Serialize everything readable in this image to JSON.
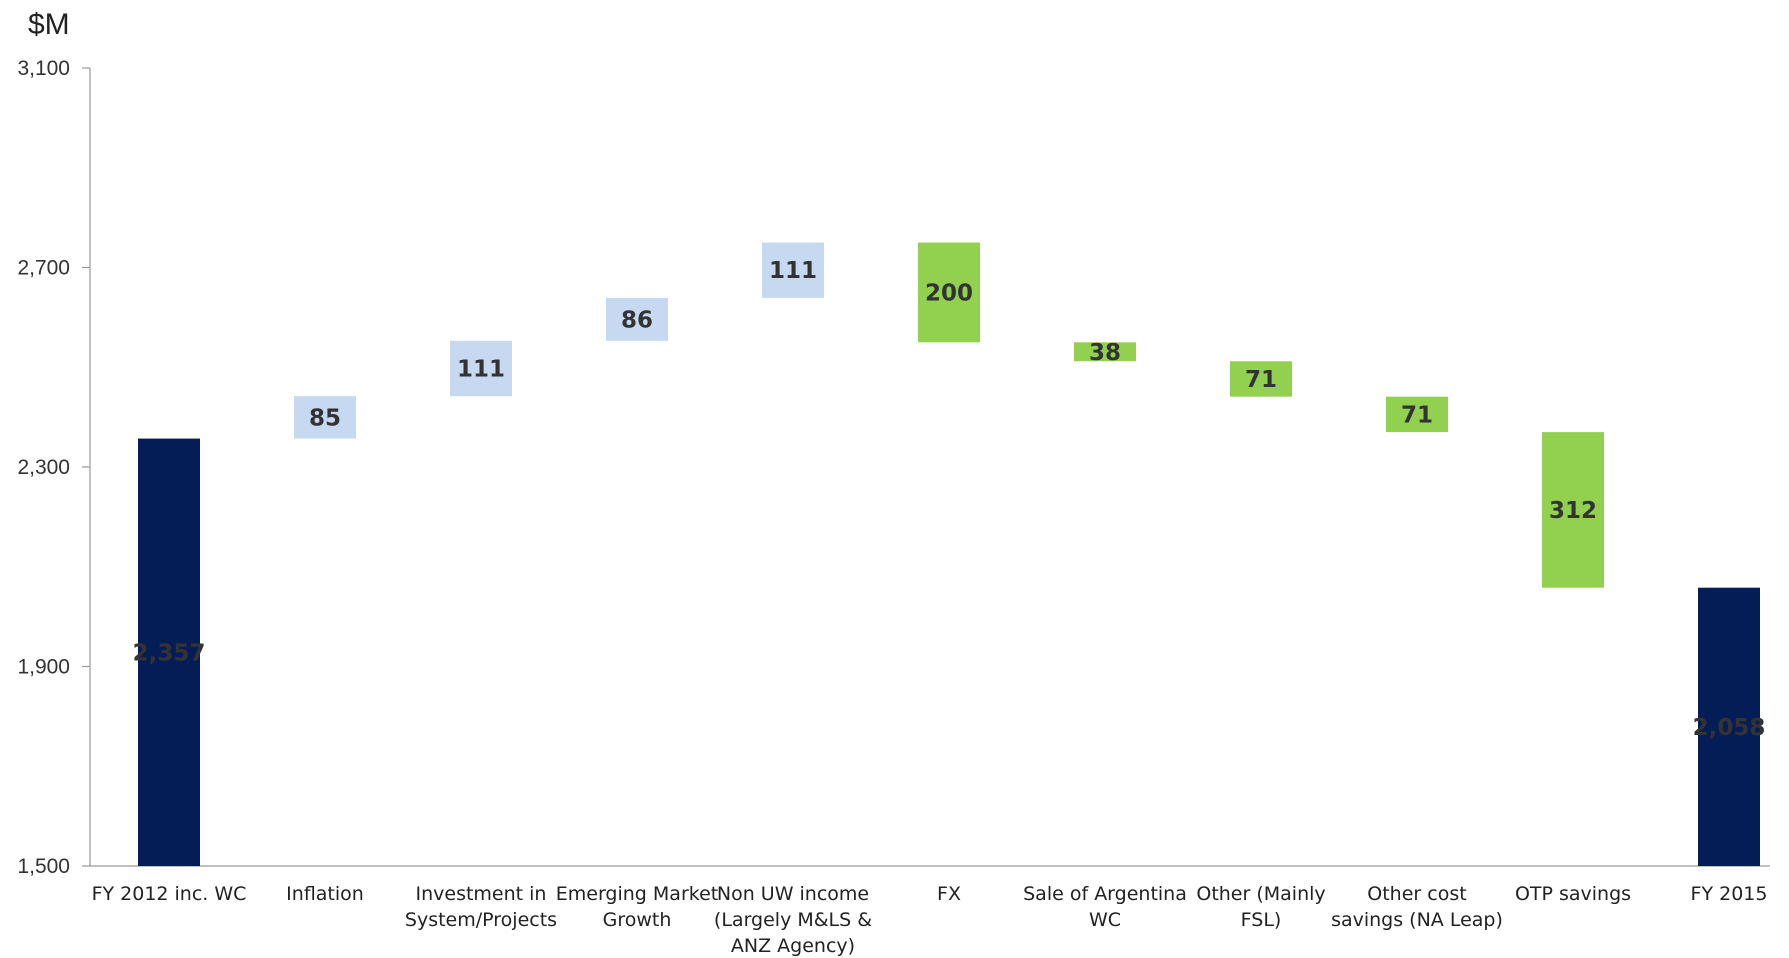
{
  "chart_data": {
    "type": "bar",
    "subtype": "waterfall",
    "unit_label": "$M",
    "ylim": [
      1500,
      3100
    ],
    "yticks": [
      1500,
      1900,
      2300,
      2700,
      3100
    ],
    "ytick_labels": [
      "1,500",
      "1,900",
      "2,300",
      "2,700",
      "3,100"
    ],
    "grid": false,
    "legend": "none",
    "colors": {
      "total": "#051D57",
      "increase": "#C6D9F1",
      "decrease": "#92D050",
      "label_dark": "#333333",
      "label_light": "#FFFFFF"
    },
    "bars": [
      {
        "category": [
          "FY 2012 inc. WC"
        ],
        "kind": "total",
        "start": 1500,
        "end": 2357,
        "label": "2,357",
        "label_style": "bold-white"
      },
      {
        "category": [
          "Inflation"
        ],
        "kind": "increase",
        "start": 2357,
        "end": 2442,
        "label": "85"
      },
      {
        "category": [
          "Investment in",
          "System/Projects"
        ],
        "kind": "increase",
        "start": 2442,
        "end": 2553,
        "label": "111"
      },
      {
        "category": [
          "Emerging Market",
          "Growth"
        ],
        "kind": "increase",
        "start": 2553,
        "end": 2639,
        "label": "86"
      },
      {
        "category": [
          "Non UW income",
          "(Largely M&LS &",
          "ANZ Agency)"
        ],
        "kind": "increase",
        "start": 2639,
        "end": 2750,
        "label": "111"
      },
      {
        "category": [
          "FX"
        ],
        "kind": "decrease",
        "start": 2750,
        "end": 2550,
        "label": "200"
      },
      {
        "category": [
          "Sale of Argentina",
          "WC"
        ],
        "kind": "decrease",
        "start": 2550,
        "end": 2512,
        "label": "38"
      },
      {
        "category": [
          "Other (Mainly",
          "FSL)"
        ],
        "kind": "decrease",
        "start": 2512,
        "end": 2441,
        "label": "71"
      },
      {
        "category": [
          "Other cost",
          "savings (NA Leap)"
        ],
        "kind": "decrease",
        "start": 2441,
        "end": 2370,
        "label": "71"
      },
      {
        "category": [
          "OTP savings"
        ],
        "kind": "decrease",
        "start": 2370,
        "end": 2058,
        "label": "312"
      },
      {
        "category": [
          "FY 2015"
        ],
        "kind": "total",
        "start": 1500,
        "end": 2058,
        "label": "2,058",
        "label_style": "light-white"
      }
    ]
  }
}
